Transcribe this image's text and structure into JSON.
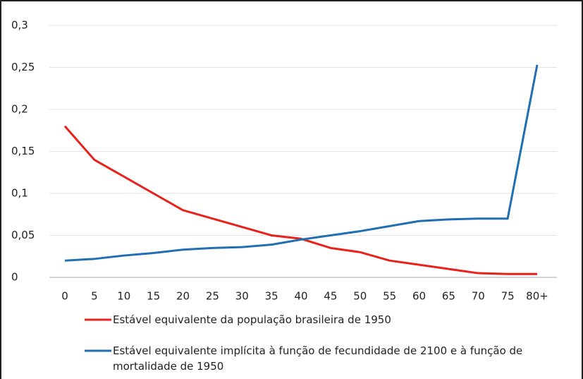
{
  "chart_data": {
    "type": "line",
    "categories": [
      "0",
      "5",
      "10",
      "15",
      "20",
      "25",
      "30",
      "35",
      "40",
      "45",
      "50",
      "55",
      "60",
      "65",
      "70",
      "75",
      "80+"
    ],
    "series": [
      {
        "name": "Estável equivalente da população brasileira de 1950",
        "color": "#e8221b",
        "values": [
          0.18,
          0.14,
          0.12,
          0.1,
          0.08,
          0.07,
          0.06,
          0.05,
          0.046,
          0.035,
          0.03,
          0.02,
          0.015,
          0.01,
          0.005,
          0.004,
          0.004
        ]
      },
      {
        "name": "Estável equivalente implícita à função de fecundidade de 2100 e à função de mortalidade de 1950",
        "color": "#1f6fb2",
        "values": [
          0.02,
          0.022,
          0.026,
          0.029,
          0.033,
          0.035,
          0.036,
          0.039,
          0.045,
          0.05,
          0.055,
          0.061,
          0.067,
          0.069,
          0.07,
          0.07,
          0.253
        ]
      }
    ],
    "ylim": [
      0,
      0.3
    ],
    "yticks": [
      0,
      {
        "value": 0.05,
        "label": "0,05"
      },
      {
        "value": 0.1,
        "label": "0,1"
      },
      {
        "value": 0.15,
        "label": "0,15"
      },
      {
        "value": 0.2,
        "label": "0,2"
      },
      {
        "value": 0.25,
        "label": "0,25"
      },
      {
        "value": 0.3,
        "label": "0,3"
      }
    ],
    "grid": true
  }
}
